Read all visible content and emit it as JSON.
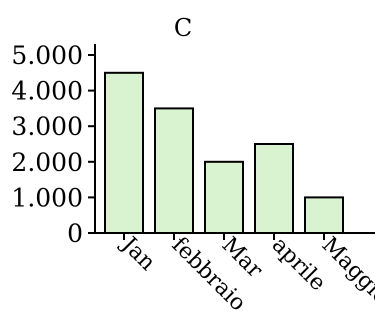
{
  "chart_data": {
    "type": "bar",
    "title": "C",
    "categories": [
      "Jan",
      "febbraio",
      "Mar",
      "aprile",
      "Maggio"
    ],
    "values": [
      4500,
      3500,
      2000,
      2500,
      1000
    ],
    "ylim": [
      0,
      5000
    ],
    "yticks": [
      0,
      1000,
      2000,
      3000,
      4000,
      5000
    ],
    "ytick_labels": [
      "0",
      "1.000",
      "2.000",
      "3.000",
      "4.000",
      "5.000"
    ],
    "xlabel": "",
    "ylabel": "",
    "grid": false,
    "bar_color": "#d9f2d0",
    "bar_edge_color": "#000000"
  }
}
